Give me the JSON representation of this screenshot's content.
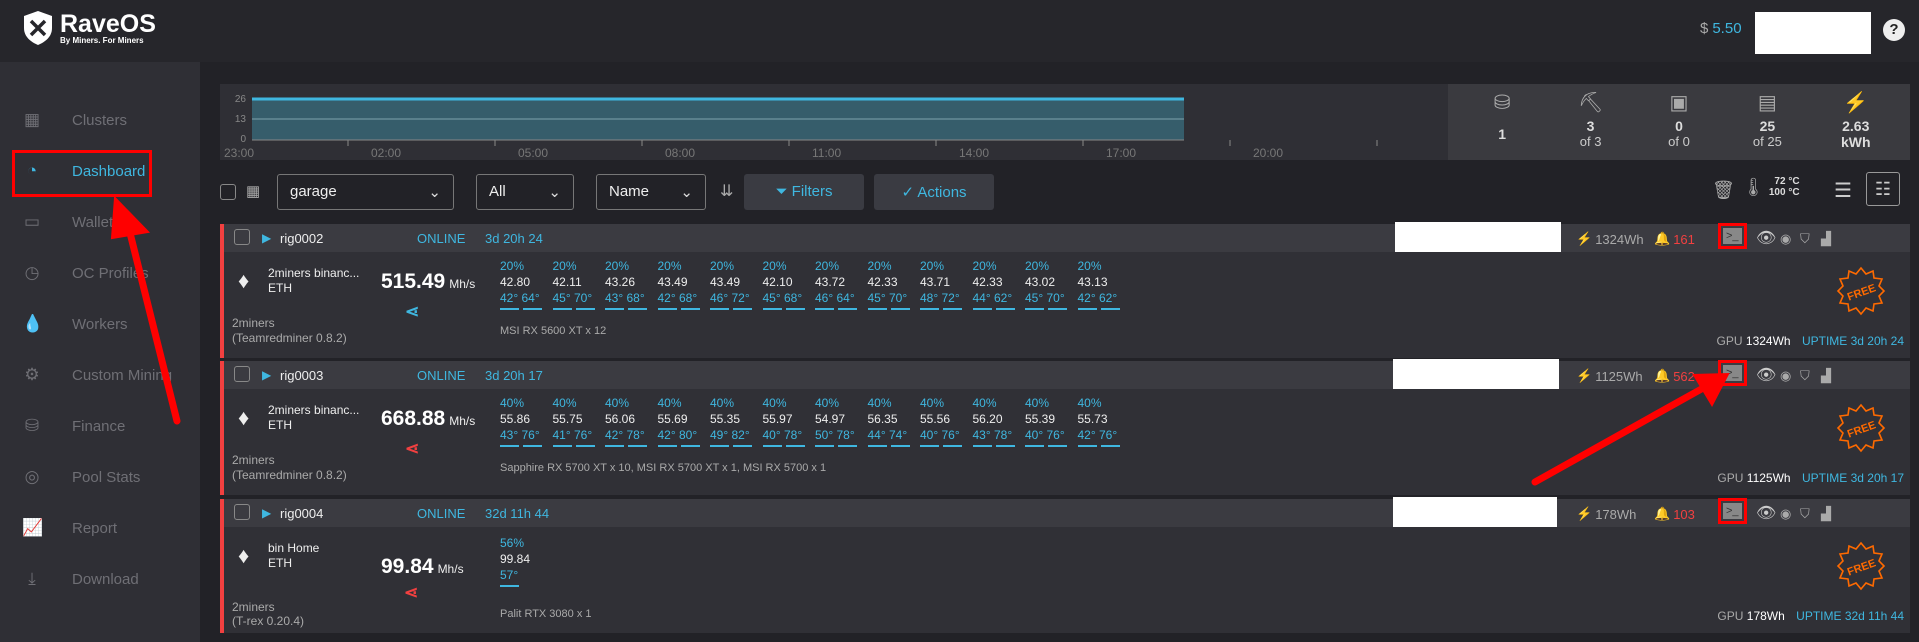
{
  "brand": {
    "name": "RaveOS",
    "tagline": "By Miners. For Miners"
  },
  "header": {
    "currency": "$",
    "balance": "5.50",
    "help": "?"
  },
  "sidebar": {
    "items": [
      {
        "label": "Clusters",
        "icon": "grid-icon",
        "glyph": "▦"
      },
      {
        "label": "Dashboard",
        "icon": "speedometer-icon",
        "glyph": "◔",
        "active": true
      },
      {
        "label": "Wallets",
        "icon": "wallet-icon",
        "glyph": "▭"
      },
      {
        "label": "OC Profiles",
        "icon": "timer-icon",
        "glyph": "◷"
      },
      {
        "label": "Workers",
        "icon": "drop-icon",
        "glyph": "💧"
      },
      {
        "label": "Custom Mining",
        "icon": "gear-icon",
        "glyph": "⚙"
      },
      {
        "label": "Finance",
        "icon": "coins-icon",
        "glyph": "⛁"
      },
      {
        "label": "Pool Stats",
        "icon": "pool-icon",
        "glyph": "◎"
      },
      {
        "label": "Report",
        "icon": "chart-icon",
        "glyph": "📈"
      },
      {
        "label": "Download",
        "icon": "download-icon",
        "glyph": "⤓"
      }
    ]
  },
  "chart": {
    "yticks": [
      "26",
      "13",
      "0"
    ],
    "xticks": [
      "23:00",
      "02:00",
      "05:00",
      "08:00",
      "11:00",
      "14:00",
      "17:00",
      "20:00"
    ],
    "colors": {
      "line": "#3fb7e0",
      "fill": "#365d6b"
    }
  },
  "stats": [
    {
      "icon": "coins-icon",
      "glyph": "⛁",
      "value": "1",
      "sub": ""
    },
    {
      "icon": "pickaxe-icon",
      "glyph": "⛏",
      "value": "3",
      "sub": "of 3"
    },
    {
      "icon": "asic-icon",
      "glyph": "▣",
      "value": "0",
      "sub": "of 0"
    },
    {
      "icon": "gpu-icon",
      "glyph": "▤",
      "value": "25",
      "sub": "of 25"
    },
    {
      "icon": "bolt-icon",
      "glyph": "⚡",
      "value": "2.63",
      "sub": "kWh"
    }
  ],
  "toolbar": {
    "group": "garage",
    "status": "All",
    "sort": "Name",
    "filters": "Filters",
    "actions": "Actions",
    "temp_low": "72 °C",
    "temp_high": "100 °C"
  },
  "rigs": [
    {
      "name": "rig0002",
      "status": "ONLINE",
      "uptime": "3d 20h 24",
      "power": "1324Wh",
      "alerts": "161",
      "pool": "2miners binanc...",
      "coin": "ETH",
      "hashrate": "515.49",
      "unit": "Mh/s",
      "share_color": "#3fb7e0",
      "pool_name": "2miners",
      "miner": "(Teamredminer 0.8.2)",
      "model": "MSI RX 5600 XT x 12",
      "gpu_label": "GPU",
      "gpu_power": "1324Wh",
      "uptime_label": "UPTIME 3d 20h 24",
      "badge": "FREE",
      "gpus": [
        [
          "20%",
          "42.80",
          "42°",
          "64°"
        ],
        [
          "20%",
          "42.11",
          "45°",
          "70°"
        ],
        [
          "20%",
          "43.26",
          "43°",
          "68°"
        ],
        [
          "20%",
          "43.49",
          "42°",
          "68°"
        ],
        [
          "20%",
          "43.49",
          "46°",
          "72°"
        ],
        [
          "20%",
          "42.10",
          "45°",
          "68°"
        ],
        [
          "20%",
          "43.72",
          "46°",
          "64°"
        ],
        [
          "20%",
          "42.33",
          "45°",
          "70°"
        ],
        [
          "20%",
          "43.71",
          "48°",
          "72°"
        ],
        [
          "20%",
          "42.33",
          "44°",
          "62°"
        ],
        [
          "20%",
          "43.02",
          "45°",
          "70°"
        ],
        [
          "20%",
          "43.13",
          "42°",
          "62°"
        ]
      ]
    },
    {
      "name": "rig0003",
      "status": "ONLINE",
      "uptime": "3d 20h 17",
      "power": "1125Wh",
      "alerts": "562",
      "pool": "2miners binanc...",
      "coin": "ETH",
      "hashrate": "668.88",
      "unit": "Mh/s",
      "share_color": "#f24040",
      "pool_name": "2miners",
      "miner": "(Teamredminer 0.8.2)",
      "model": "Sapphire RX 5700 XT x 10, MSI RX 5700 XT x 1, MSI RX 5700 x 1",
      "gpu_label": "GPU",
      "gpu_power": "1125Wh",
      "uptime_label": "UPTIME 3d 20h 17",
      "badge": "FREE",
      "gpus": [
        [
          "40%",
          "55.86",
          "43°",
          "76°"
        ],
        [
          "40%",
          "55.75",
          "41°",
          "76°"
        ],
        [
          "40%",
          "56.06",
          "42°",
          "78°"
        ],
        [
          "40%",
          "55.69",
          "42°",
          "80°"
        ],
        [
          "40%",
          "55.35",
          "49°",
          "82°"
        ],
        [
          "40%",
          "55.97",
          "40°",
          "78°"
        ],
        [
          "40%",
          "54.97",
          "50°",
          "78°"
        ],
        [
          "40%",
          "56.35",
          "44°",
          "74°"
        ],
        [
          "40%",
          "55.56",
          "40°",
          "76°"
        ],
        [
          "40%",
          "56.20",
          "43°",
          "78°"
        ],
        [
          "40%",
          "55.39",
          "40°",
          "76°"
        ],
        [
          "40%",
          "55.73",
          "42°",
          "76°"
        ]
      ]
    },
    {
      "name": "rig0004",
      "status": "ONLINE",
      "uptime": "32d 11h 44",
      "power": "178Wh",
      "alerts": "103",
      "pool": "bin Home",
      "coin": "ETH",
      "hashrate": "99.84",
      "unit": "Mh/s",
      "share_color": "#f24040",
      "pool_name": "2miners",
      "miner": "(T-rex 0.20.4)",
      "model": "Palit RTX 3080 x 1",
      "gpu_label": "GPU",
      "gpu_power": "178Wh",
      "uptime_label": "UPTIME 32d 11h 44",
      "badge": "FREE",
      "gpus": [
        [
          "56%",
          "99.84",
          "57°",
          ""
        ]
      ]
    }
  ]
}
